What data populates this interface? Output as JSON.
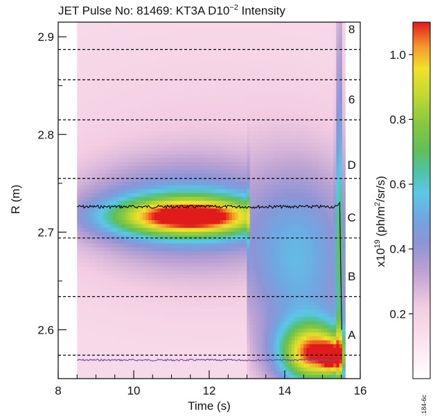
{
  "chart_data": {
    "type": "heatmap",
    "title_prefix": "JET Pulse No: 81469: KT3A D10",
    "title_exp": "−2",
    "title_suffix": " Intensity",
    "xlabel": "Time (s)",
    "ylabel": "R (m)",
    "xlim": [
      8,
      16
    ],
    "ylim": [
      2.55,
      2.915
    ],
    "xticks": [
      {
        "v": 8,
        "label": "8"
      },
      {
        "v": 10,
        "label": "10"
      },
      {
        "v": 12,
        "label": "12"
      },
      {
        "v": 14,
        "label": "14"
      },
      {
        "v": 16,
        "label": "16"
      }
    ],
    "yticks": [
      {
        "v": 2.6,
        "label": "2.6"
      },
      {
        "v": 2.7,
        "label": "2.7"
      },
      {
        "v": 2.8,
        "label": "2.8"
      },
      {
        "v": 2.9,
        "label": "2.9"
      }
    ],
    "data_time_range": [
      8.5,
      15.6
    ],
    "dashed_lines_R": [
      2.887,
      2.856,
      2.815,
      2.755,
      2.694,
      2.634,
      2.574
    ],
    "region_labels": [
      {
        "text": "8",
        "t": 15.7,
        "R": 2.908
      },
      {
        "text": "6",
        "t": 15.7,
        "R": 2.836
      },
      {
        "text": "D",
        "t": 15.7,
        "R": 2.769
      },
      {
        "text": "C",
        "t": 15.7,
        "R": 2.715
      },
      {
        "text": "B",
        "t": 15.7,
        "R": 2.655
      },
      {
        "text": "A",
        "t": 15.7,
        "R": 2.595
      }
    ],
    "intensity_blobs": [
      {
        "t": 11.5,
        "R": 2.716,
        "st": 1.5,
        "sR": 0.014,
        "a": 0.66,
        "tmax": 13.05
      },
      {
        "t": 11.2,
        "R": 2.725,
        "st": 1.9,
        "sR": 0.032,
        "a": 0.22,
        "tmax": 13.05
      },
      {
        "t": 12.0,
        "R": 2.7,
        "st": 2.6,
        "sR": 0.05,
        "a": 0.12
      },
      {
        "t": 12.2,
        "R": 2.79,
        "st": 3.2,
        "sR": 0.07,
        "a": 0.05
      },
      {
        "t": 14.4,
        "R": 2.64,
        "st": 1.1,
        "sR": 0.075,
        "a": 0.24,
        "tmin": 13.0
      },
      {
        "t": 14.5,
        "R": 2.7,
        "st": 0.9,
        "sR": 0.06,
        "a": 0.06,
        "tmin": 13.0
      },
      {
        "t": 14.8,
        "R": 2.576,
        "st": 0.65,
        "sR": 0.022,
        "a": 0.72,
        "tmin": 13.05
      },
      {
        "t": 15.25,
        "R": 2.572,
        "st": 0.18,
        "sR": 0.011,
        "a": 0.35
      },
      {
        "t": 15.45,
        "R": 2.7,
        "st": 0.06,
        "sR": 0.17,
        "a": 0.34
      }
    ],
    "colorbar": {
      "label_prefix": "x10",
      "label_exp": "19",
      "label_suffix": " (ph/m",
      "label_exp2": "2",
      "label_suffix2": "/sr/s)",
      "range": [
        0,
        1.1
      ],
      "ticks": [
        {
          "v": 0.2,
          "label": "0.2"
        },
        {
          "v": 0.4,
          "label": "0.4"
        },
        {
          "v": 0.6,
          "label": "0.6"
        },
        {
          "v": 0.8,
          "label": "0.8"
        },
        {
          "v": 1.0,
          "label": "1.0"
        }
      ],
      "stops": [
        [
          0.0,
          "#ffffff"
        ],
        [
          0.1,
          "#fae4ef"
        ],
        [
          0.2,
          "#f3cce1"
        ],
        [
          0.3,
          "#bca2d2"
        ],
        [
          0.38,
          "#8e94d6"
        ],
        [
          0.45,
          "#6fa7e0"
        ],
        [
          0.52,
          "#5dc7e8"
        ],
        [
          0.58,
          "#4fc3a8"
        ],
        [
          0.64,
          "#5fbf5a"
        ],
        [
          0.72,
          "#8bc83e"
        ],
        [
          0.8,
          "#c5d92f"
        ],
        [
          0.87,
          "#f0e12c"
        ],
        [
          0.93,
          "#f59a2a"
        ],
        [
          1.0,
          "#e11b1b"
        ]
      ]
    },
    "trace_black": {
      "R": 2.726,
      "t_start": 8.5,
      "t_end": 15.4
    },
    "trace_purple": {
      "R": 2.569,
      "t_start": 8.5,
      "t_end": 15.4
    },
    "corner_id": "JG12.184-6c"
  }
}
